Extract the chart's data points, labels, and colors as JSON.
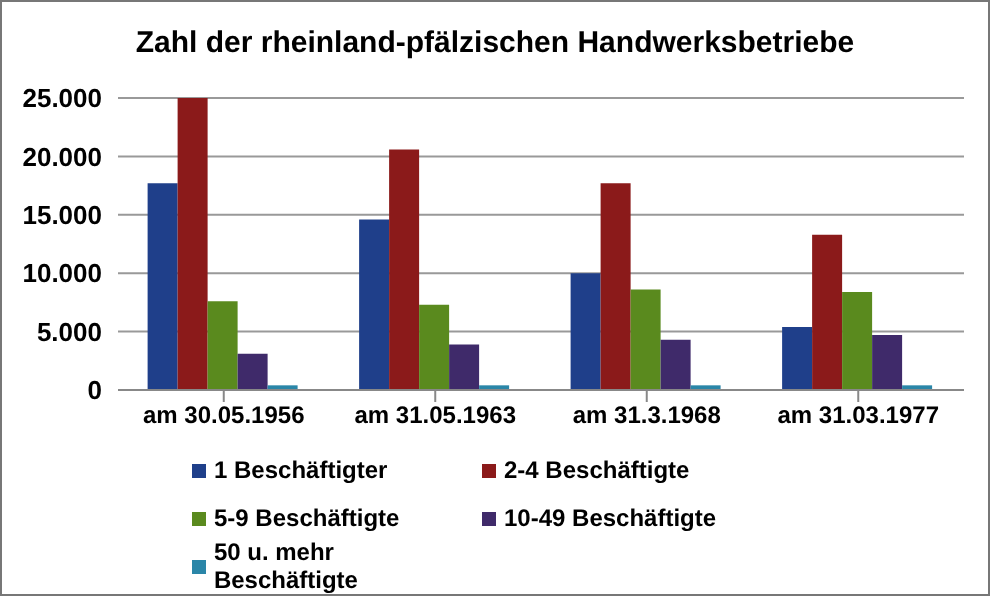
{
  "chart_data": {
    "type": "bar",
    "title": "Zahl der rheinland-pfälzischen Handwerksbetriebe",
    "categories": [
      "am 30.05.1956",
      "am 31.05.1963",
      "am 31.3.1968",
      "am 31.03.1977"
    ],
    "series": [
      {
        "name": "1 Beschäftigter",
        "color": "#1f3f8a",
        "values": [
          17700,
          14600,
          10000,
          5400
        ]
      },
      {
        "name": "2-4 Beschäftigte",
        "color": "#8b1a1a",
        "values": [
          25000,
          20600,
          17700,
          13300
        ]
      },
      {
        "name": "5-9 Beschäftigte",
        "color": "#5a8a1e",
        "values": [
          7600,
          7300,
          8600,
          8400
        ]
      },
      {
        "name": "10-49 Beschäftigte",
        "color": "#3f2a6a",
        "values": [
          3100,
          3900,
          4300,
          4700
        ]
      },
      {
        "name": "50 u. mehr Beschäftigte",
        "color": "#2a86a8",
        "values": [
          400,
          400,
          400,
          400
        ]
      }
    ],
    "ylim": [
      0,
      25000
    ],
    "yticks": [
      {
        "value": 0,
        "label": "0"
      },
      {
        "value": 5000,
        "label": "5.000"
      },
      {
        "value": 10000,
        "label": "10.000"
      },
      {
        "value": 15000,
        "label": "15.000"
      },
      {
        "value": 20000,
        "label": "20.000"
      },
      {
        "value": 25000,
        "label": "25.000"
      }
    ],
    "grid": "y",
    "legend": "bottom"
  }
}
